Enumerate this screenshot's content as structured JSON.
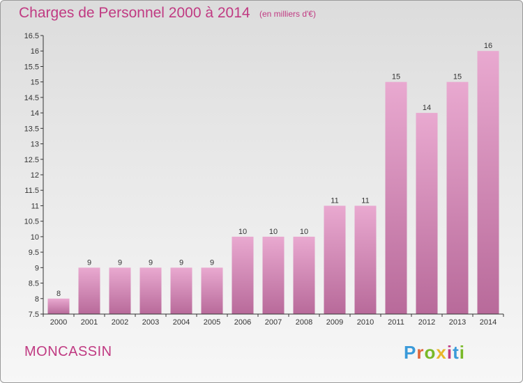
{
  "header": {
    "title": "Charges de Personnel 2000 à 2014",
    "subtitle": "(en milliers d'€)"
  },
  "footer": {
    "commune": "MONCASSIN",
    "logo": "Proxiti",
    "logo_colors": [
      "#3a9ad9",
      "#e0663a",
      "#79b928",
      "#e8b62a",
      "#c03a82",
      "#3a9ad9",
      "#79b928"
    ]
  },
  "colors": {
    "bar_top": "#e9a9d0",
    "bar_bottom": "#b86a9a",
    "title": "#c03a82"
  },
  "chart_data": {
    "type": "bar",
    "categories": [
      "2000",
      "2001",
      "2002",
      "2003",
      "2004",
      "2005",
      "2006",
      "2007",
      "2008",
      "2009",
      "2010",
      "2011",
      "2012",
      "2013",
      "2014"
    ],
    "values": [
      8,
      9,
      9,
      9,
      9,
      9,
      10,
      10,
      10,
      11,
      11,
      15,
      14,
      15,
      16
    ],
    "data_labels": [
      "8",
      "9",
      "9",
      "9",
      "9",
      "9",
      "10",
      "10",
      "10",
      "11",
      "11",
      "15",
      "14",
      "15",
      "16"
    ],
    "ylim": [
      7.5,
      16.5
    ],
    "yticks": [
      7.5,
      8,
      8.5,
      9,
      9.5,
      10,
      10.5,
      11,
      11.5,
      12,
      12.5,
      13,
      13.5,
      14,
      14.5,
      15,
      15.5,
      16,
      16.5
    ],
    "ytick_labels": [
      "7.5",
      "8",
      "8.5",
      "9",
      "9.5",
      "10",
      "10.5",
      "11",
      "11.5",
      "12",
      "12.5",
      "13",
      "13.5",
      "14",
      "14.5",
      "15",
      "15.5",
      "16",
      "16.5"
    ],
    "grid": false
  }
}
